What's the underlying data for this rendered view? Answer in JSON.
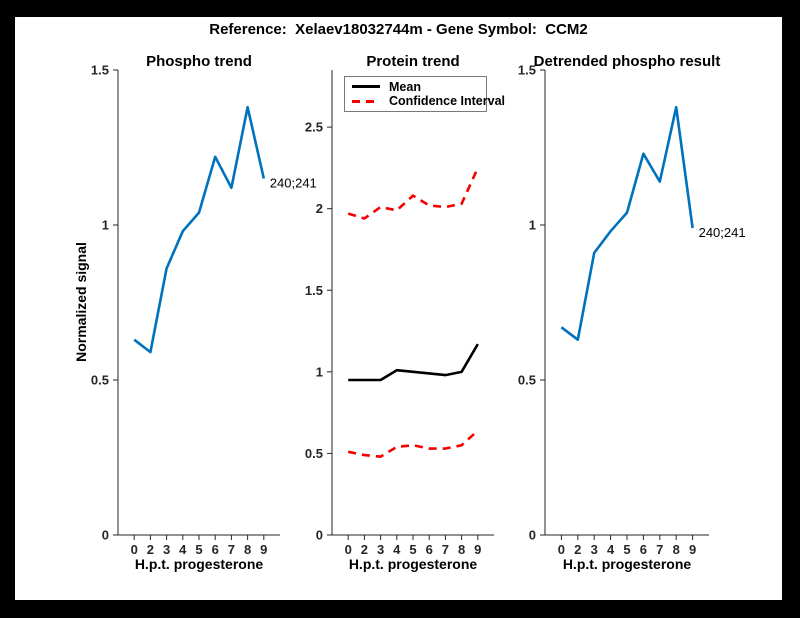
{
  "figure": {
    "title": "Reference:  Xelaev18032744m - Gene Symbol:  CCM2",
    "background": "#ffffff",
    "frame_color": "#000000"
  },
  "colors": {
    "phospho_line": "#0072BD",
    "mean_line": "#000000",
    "confidence_line": "#f50000",
    "axis": "#262626"
  },
  "chart_data": [
    {
      "type": "line",
      "title": "Phospho trend",
      "xlabel": "H.p.t. progesterone",
      "ylabel": "Normalized signal",
      "x_tick_labels": [
        "0",
        "2",
        "3",
        "4",
        "5",
        "6",
        "7",
        "8",
        "9"
      ],
      "y_ticks": [
        0,
        0.5,
        1,
        1.5
      ],
      "ylim": [
        0,
        1.5
      ],
      "grid": false,
      "series": [
        {
          "name": "phospho-signal",
          "color": "#0072BD",
          "style": "solid",
          "values": [
            0.63,
            0.59,
            0.86,
            0.98,
            1.04,
            1.22,
            1.12,
            1.38,
            1.15
          ]
        }
      ],
      "annotation": {
        "text": "240;241",
        "series": 0,
        "point_index": 8
      }
    },
    {
      "type": "line",
      "title": "Protein trend",
      "xlabel": "H.p.t. progesterone",
      "ylabel": "",
      "x_tick_labels": [
        "0",
        "2",
        "3",
        "4",
        "5",
        "6",
        "7",
        "8",
        "9"
      ],
      "y_ticks": [
        0,
        0.5,
        1,
        1.5,
        2,
        2.5
      ],
      "ylim": [
        0,
        2.85
      ],
      "grid": false,
      "legend_position": "top-left-inside",
      "legend": [
        {
          "label": "Mean",
          "color": "#000000",
          "style": "solid"
        },
        {
          "label": "Confidence Interval",
          "color": "#f50000",
          "style": "dashed"
        }
      ],
      "series": [
        {
          "name": "mean",
          "color": "#000000",
          "style": "solid",
          "values": [
            0.95,
            0.95,
            0.95,
            1.01,
            1.0,
            0.99,
            0.98,
            1.0,
            1.17
          ]
        },
        {
          "name": "confidence-upper",
          "color": "#f50000",
          "style": "dashed",
          "values": [
            1.97,
            1.94,
            2.01,
            1.99,
            2.08,
            2.02,
            2.01,
            2.03,
            2.25
          ]
        },
        {
          "name": "confidence-lower",
          "color": "#f50000",
          "style": "dashed",
          "values": [
            0.51,
            0.49,
            0.48,
            0.54,
            0.55,
            0.53,
            0.53,
            0.55,
            0.64
          ]
        }
      ]
    },
    {
      "type": "line",
      "title": "Detrended phospho result",
      "xlabel": "H.p.t. progesterone",
      "ylabel": "",
      "x_tick_labels": [
        "0",
        "2",
        "3",
        "4",
        "5",
        "6",
        "7",
        "8",
        "9"
      ],
      "y_ticks": [
        0,
        0.5,
        1,
        1.5
      ],
      "ylim": [
        0,
        1.5
      ],
      "grid": false,
      "series": [
        {
          "name": "detrended-phospho-signal",
          "color": "#0072BD",
          "style": "solid",
          "values": [
            0.67,
            0.63,
            0.91,
            0.98,
            1.04,
            1.23,
            1.14,
            1.38,
            0.99
          ]
        }
      ],
      "annotation": {
        "text": "240;241",
        "series": 0,
        "point_index": 8
      }
    }
  ]
}
